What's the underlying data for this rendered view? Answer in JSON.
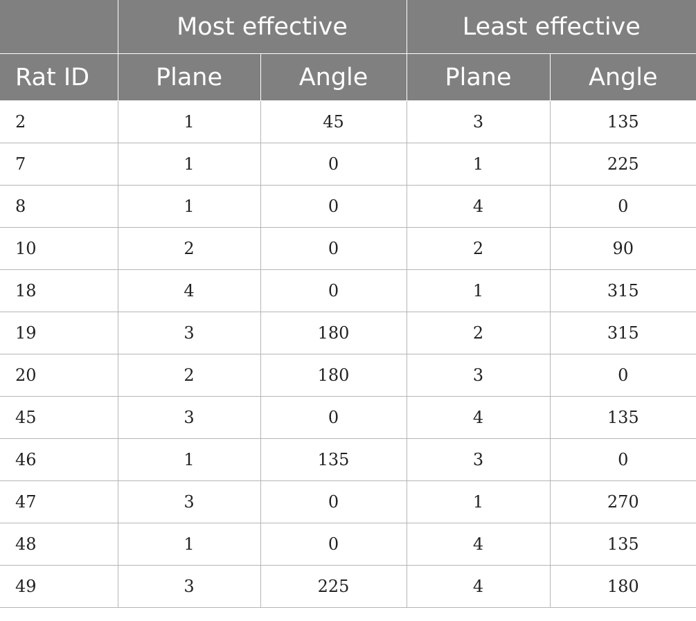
{
  "table": {
    "group_headers": [
      "",
      "Most effective",
      "Least effective"
    ],
    "column_headers": [
      "Rat ID",
      "Plane",
      "Angle",
      "Plane",
      "Angle"
    ],
    "rows": [
      [
        "2",
        "1",
        "45",
        "3",
        "135"
      ],
      [
        "7",
        "1",
        "0",
        "1",
        "225"
      ],
      [
        "8",
        "1",
        "0",
        "4",
        "0"
      ],
      [
        "10",
        "2",
        "0",
        "2",
        "90"
      ],
      [
        "18",
        "4",
        "0",
        "1",
        "315"
      ],
      [
        "19",
        "3",
        "180",
        "2",
        "315"
      ],
      [
        "20",
        "2",
        "180",
        "3",
        "0"
      ],
      [
        "45",
        "3",
        "0",
        "4",
        "135"
      ],
      [
        "46",
        "1",
        "135",
        "3",
        "0"
      ],
      [
        "47",
        "3",
        "0",
        "1",
        "270"
      ],
      [
        "48",
        "1",
        "0",
        "4",
        "135"
      ],
      [
        "49",
        "3",
        "225",
        "4",
        "180"
      ]
    ]
  },
  "colors": {
    "header_bg": "#808080",
    "header_text": "#ffffff",
    "grid_line": "#b5b5b5"
  }
}
